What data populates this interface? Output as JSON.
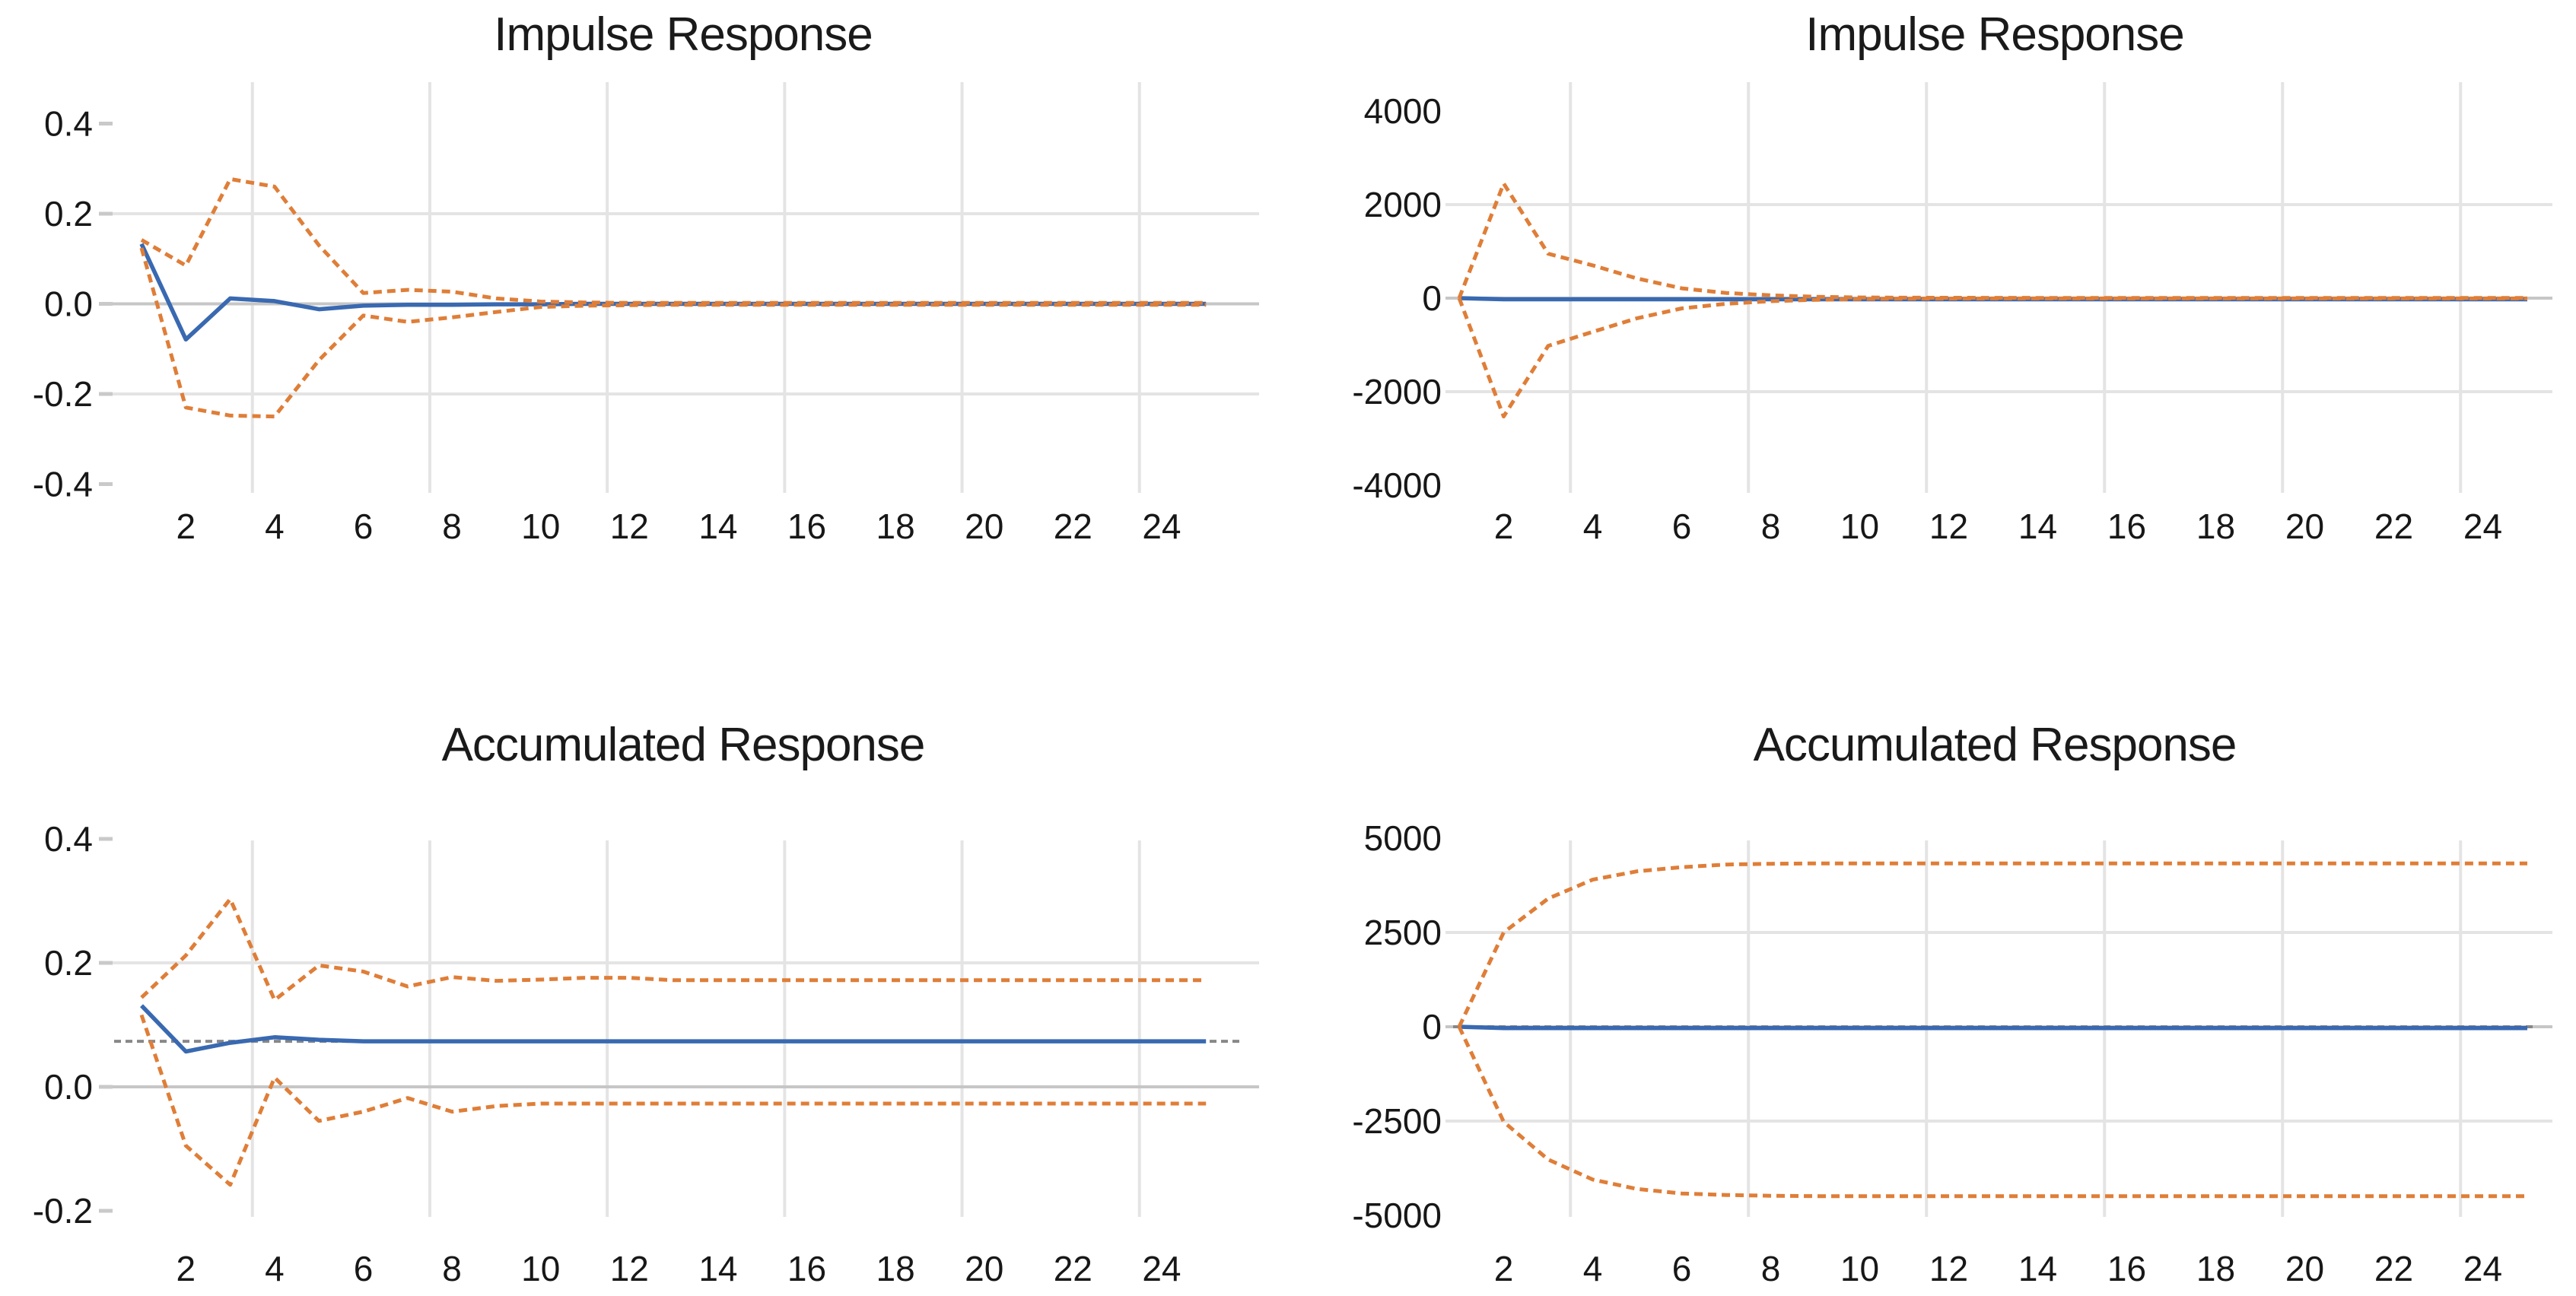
{
  "page": {
    "background": "#ffffff"
  },
  "colors": {
    "point_estimate": "#3969B1",
    "band": "#DF7E38",
    "asymptote": "#878787",
    "gridline": "#E4E4E4",
    "gridline_zero": "#C6C6C6",
    "tick_mark": "#C9C9C9",
    "label_text": "#171717"
  },
  "chart_data": [
    {
      "id": "impulse-left",
      "type": "line",
      "title": "Impulse Response",
      "x": [
        1,
        2,
        3,
        4,
        5,
        6,
        7,
        8,
        9,
        10,
        11,
        12,
        13,
        14,
        15,
        16,
        17,
        18,
        19,
        20,
        21,
        22,
        23,
        24,
        25
      ],
      "x_axis": {
        "tick_labels": [
          "2",
          "4",
          "6",
          "8",
          "10",
          "12",
          "14",
          "16",
          "18",
          "20",
          "22",
          "24"
        ],
        "tick_values": [
          2,
          4,
          6,
          8,
          10,
          12,
          14,
          16,
          18,
          20,
          22,
          24
        ],
        "gridlines": [
          3.5,
          7.5,
          11.5,
          15.5,
          19.5,
          23.5
        ],
        "range": [
          1,
          25
        ]
      },
      "y_axis": {
        "tick_labels": [
          "0.4",
          "0.2",
          "0.0",
          "-0.2",
          "-0.4"
        ],
        "tick_values": [
          0.4,
          0.2,
          0.0,
          -0.2,
          -0.4
        ],
        "gridlines": [
          0.2,
          0,
          -0.2
        ],
        "range": [
          -0.45,
          0.45
        ]
      },
      "asymptote": null,
      "series": [
        {
          "name": "upper_band",
          "role": "band",
          "values": [
            0.142,
            0.085,
            0.277,
            0.26,
            0.13,
            0.024,
            0.031,
            0.027,
            0.012,
            0.005,
            0.003,
            0.002,
            0.002,
            0.002,
            0.002,
            0.002,
            0.002,
            0.002,
            0.002,
            0.002,
            0.002,
            0.002,
            0.002,
            0.002,
            0.002
          ]
        },
        {
          "name": "lower_band",
          "role": "band",
          "values": [
            0.124,
            -0.23,
            -0.248,
            -0.25,
            -0.125,
            -0.026,
            -0.04,
            -0.03,
            -0.018,
            -0.007,
            -0.004,
            -0.003,
            -0.002,
            -0.002,
            -0.002,
            -0.002,
            -0.002,
            -0.002,
            -0.002,
            -0.002,
            -0.002,
            -0.002,
            -0.002,
            -0.002,
            -0.002
          ]
        },
        {
          "name": "point_estimate",
          "role": "point_estimate",
          "values": [
            0.133,
            -0.079,
            0.012,
            0.006,
            -0.012,
            -0.004,
            -0.002,
            -0.002,
            -0.001,
            -0.001,
            0,
            0,
            0,
            0,
            0,
            0,
            0,
            0,
            0,
            0,
            0,
            0,
            0,
            0,
            0
          ]
        }
      ]
    },
    {
      "id": "impulse-right",
      "type": "line",
      "title": "Impulse Response",
      "x": [
        1,
        2,
        3,
        4,
        5,
        6,
        7,
        8,
        9,
        10,
        11,
        12,
        13,
        14,
        15,
        16,
        17,
        18,
        19,
        20,
        21,
        22,
        23,
        24,
        25
      ],
      "x_axis": {
        "tick_labels": [
          "2",
          "4",
          "6",
          "8",
          "10",
          "12",
          "14",
          "16",
          "18",
          "20",
          "22",
          "24"
        ],
        "tick_values": [
          2,
          4,
          6,
          8,
          10,
          12,
          14,
          16,
          18,
          20,
          22,
          24
        ],
        "gridlines": [
          3.5,
          7.5,
          11.5,
          15.5,
          19.5,
          23.5
        ],
        "range": [
          1,
          25
        ]
      },
      "y_axis": {
        "tick_labels": [
          "4000",
          "2000",
          "0",
          "-2000",
          "-4000"
        ],
        "tick_values": [
          4000,
          2000,
          0,
          -2000,
          -4000
        ],
        "gridlines": [
          2000,
          0,
          -2000
        ],
        "range": [
          -4500,
          4500
        ]
      },
      "asymptote": null,
      "series": [
        {
          "name": "upper_band",
          "role": "band",
          "values": [
            0,
            2450,
            950,
            700,
            420,
            210,
            110,
            60,
            30,
            15,
            10,
            8,
            6,
            5,
            5,
            5,
            5,
            5,
            5,
            5,
            5,
            5,
            5,
            5,
            5
          ]
        },
        {
          "name": "lower_band",
          "role": "band",
          "values": [
            0,
            -2530,
            -1020,
            -720,
            -430,
            -220,
            -120,
            -65,
            -35,
            -18,
            -12,
            -9,
            -7,
            -6,
            -6,
            -6,
            -6,
            -6,
            -6,
            -6,
            -6,
            -6,
            -6,
            -6,
            -6
          ]
        },
        {
          "name": "point_estimate",
          "role": "point_estimate",
          "values": [
            0,
            -25,
            -25,
            -25,
            -25,
            -25,
            -25,
            -25,
            -25,
            -25,
            -25,
            -25,
            -25,
            -25,
            -25,
            -25,
            -25,
            -25,
            -25,
            -25,
            -25,
            -25,
            -25,
            -25,
            -25
          ]
        }
      ]
    },
    {
      "id": "accumulated-left",
      "type": "line",
      "title": "Accumulated Response",
      "x": [
        1,
        2,
        3,
        4,
        5,
        6,
        7,
        8,
        9,
        10,
        11,
        12,
        13,
        14,
        15,
        16,
        17,
        18,
        19,
        20,
        21,
        22,
        23,
        24,
        25
      ],
      "x_axis": {
        "tick_labels": [
          "2",
          "4",
          "6",
          "8",
          "10",
          "12",
          "14",
          "16",
          "18",
          "20",
          "22",
          "24"
        ],
        "tick_values": [
          2,
          4,
          6,
          8,
          10,
          12,
          14,
          16,
          18,
          20,
          22,
          24
        ],
        "gridlines": [
          3.5,
          7.5,
          11.5,
          15.5,
          19.5,
          23.5
        ],
        "range": [
          1,
          25
        ]
      },
      "y_axis": {
        "tick_labels": [
          "0.4",
          "0.2",
          "0.0",
          "-0.2"
        ],
        "tick_values": [
          0.4,
          0.2,
          0.0,
          -0.2
        ],
        "gridlines": [
          0.2,
          0
        ],
        "range": [
          -0.22,
          0.42
        ]
      },
      "asymptote": {
        "value": 0.0735
      },
      "series": [
        {
          "name": "upper_band",
          "role": "band",
          "values": [
            0.144,
            0.212,
            0.303,
            0.14,
            0.196,
            0.186,
            0.162,
            0.177,
            0.171,
            0.173,
            0.176,
            0.176,
            0.172,
            0.172,
            0.172,
            0.172,
            0.172,
            0.172,
            0.172,
            0.172,
            0.172,
            0.172,
            0.172,
            0.172,
            0.172
          ]
        },
        {
          "name": "lower_band",
          "role": "band",
          "values": [
            0.116,
            -0.095,
            -0.158,
            0.015,
            -0.055,
            -0.04,
            -0.018,
            -0.04,
            -0.031,
            -0.027,
            -0.027,
            -0.027,
            -0.027,
            -0.027,
            -0.027,
            -0.027,
            -0.027,
            -0.027,
            -0.027,
            -0.027,
            -0.027,
            -0.027,
            -0.027,
            -0.027,
            -0.027
          ]
        },
        {
          "name": "point_estimate",
          "role": "point_estimate",
          "values": [
            0.131,
            0.057,
            0.071,
            0.08,
            0.076,
            0.0735,
            0.0735,
            0.0735,
            0.0735,
            0.0735,
            0.0735,
            0.0735,
            0.0735,
            0.0735,
            0.0735,
            0.0735,
            0.0735,
            0.0735,
            0.0735,
            0.0735,
            0.0735,
            0.0735,
            0.0735,
            0.0735,
            0.0735
          ]
        }
      ]
    },
    {
      "id": "accumulated-right",
      "type": "line",
      "title": "Accumulated Response",
      "x": [
        1,
        2,
        3,
        4,
        5,
        6,
        7,
        8,
        9,
        10,
        11,
        12,
        13,
        14,
        15,
        16,
        17,
        18,
        19,
        20,
        21,
        22,
        23,
        24,
        25
      ],
      "x_axis": {
        "tick_labels": [
          "2",
          "4",
          "6",
          "8",
          "10",
          "12",
          "14",
          "16",
          "18",
          "20",
          "22",
          "24"
        ],
        "tick_values": [
          2,
          4,
          6,
          8,
          10,
          12,
          14,
          16,
          18,
          20,
          22,
          24
        ],
        "gridlines": [
          3.5,
          7.5,
          11.5,
          15.5,
          19.5,
          23.5
        ],
        "range": [
          1,
          25
        ]
      },
      "y_axis": {
        "tick_labels": [
          "5000",
          "2500",
          "0",
          "-2500",
          "-5000"
        ],
        "tick_values": [
          5000,
          2500,
          0,
          -2500,
          -5000
        ],
        "gridlines": [
          2500,
          0,
          -2500
        ],
        "range": [
          -5200,
          5200
        ]
      },
      "asymptote": {
        "value": 0
      },
      "series": [
        {
          "name": "upper_band",
          "role": "band",
          "values": [
            0,
            2500,
            3400,
            3900,
            4120,
            4230,
            4300,
            4320,
            4330,
            4330,
            4330,
            4330,
            4330,
            4330,
            4330,
            4330,
            4330,
            4330,
            4330,
            4330,
            4330,
            4330,
            4330,
            4330,
            4330
          ]
        },
        {
          "name": "lower_band",
          "role": "band",
          "values": [
            0,
            -2520,
            -3520,
            -4050,
            -4300,
            -4420,
            -4460,
            -4480,
            -4490,
            -4490,
            -4490,
            -4490,
            -4490,
            -4490,
            -4490,
            -4490,
            -4490,
            -4490,
            -4490,
            -4490,
            -4490,
            -4490,
            -4490,
            -4490,
            -4490
          ]
        },
        {
          "name": "point_estimate",
          "role": "point_estimate",
          "values": [
            0,
            -35,
            -35,
            -35,
            -35,
            -35,
            -35,
            -35,
            -35,
            -35,
            -35,
            -35,
            -35,
            -35,
            -35,
            -35,
            -35,
            -35,
            -35,
            -35,
            -35,
            -35,
            -35,
            -35,
            -35
          ]
        }
      ]
    }
  ]
}
